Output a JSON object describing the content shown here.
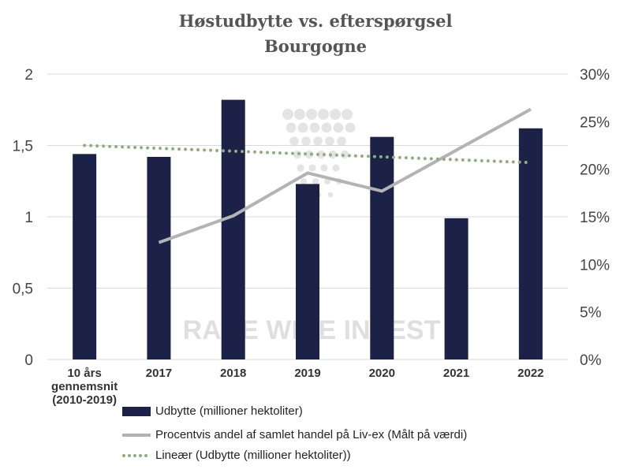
{
  "chart_data": {
    "type": "bar",
    "title": "Høstudbytte vs. efterspørgsel",
    "subtitle": "Bourgogne",
    "categories": [
      "10 års gennemsnit (2010-2019)",
      "2017",
      "2018",
      "2019",
      "2020",
      "2021",
      "2022"
    ],
    "category_lines": [
      [
        "10 års",
        "gennemsnit",
        "(2010-2019)"
      ],
      [
        "2017"
      ],
      [
        "2018"
      ],
      [
        "2019"
      ],
      [
        "2020"
      ],
      [
        "2021"
      ],
      [
        "2022"
      ]
    ],
    "series": [
      {
        "name": "Udbytte (millioner hektoliter)",
        "type": "bar",
        "axis": "left",
        "color": "#1b2147",
        "values": [
          1.44,
          1.42,
          1.82,
          1.23,
          1.56,
          0.99,
          1.62
        ]
      },
      {
        "name": "Procentvis andel af samlet handel på Liv-ex (Målt på værdi)",
        "type": "line",
        "axis": "right",
        "color": "#b3b3b3",
        "values": [
          null,
          12.3,
          15.1,
          19.6,
          17.7,
          22.0,
          26.3
        ]
      },
      {
        "name": "Lineær (Udbytte (millioner hektoliter))",
        "type": "trendline",
        "axis": "left",
        "color": "#8fae7a",
        "values": [
          1.5,
          1.48,
          1.46,
          1.44,
          1.42,
          1.4,
          1.38
        ]
      }
    ],
    "y_left": {
      "ylim": [
        0,
        2
      ],
      "ticks": [
        0,
        0.5,
        1,
        1.5,
        2
      ],
      "tick_labels": [
        "0",
        "0,5",
        "1",
        "1,5",
        "2"
      ]
    },
    "y_right": {
      "ylim": [
        0,
        30
      ],
      "ticks": [
        0,
        5,
        10,
        15,
        20,
        25,
        30
      ],
      "tick_labels": [
        "0%",
        "5%",
        "10%",
        "15%",
        "20%",
        "25%",
        "30%"
      ]
    },
    "grid": true,
    "legend_position": "bottom"
  },
  "watermark": "RARE WINE INVEST"
}
